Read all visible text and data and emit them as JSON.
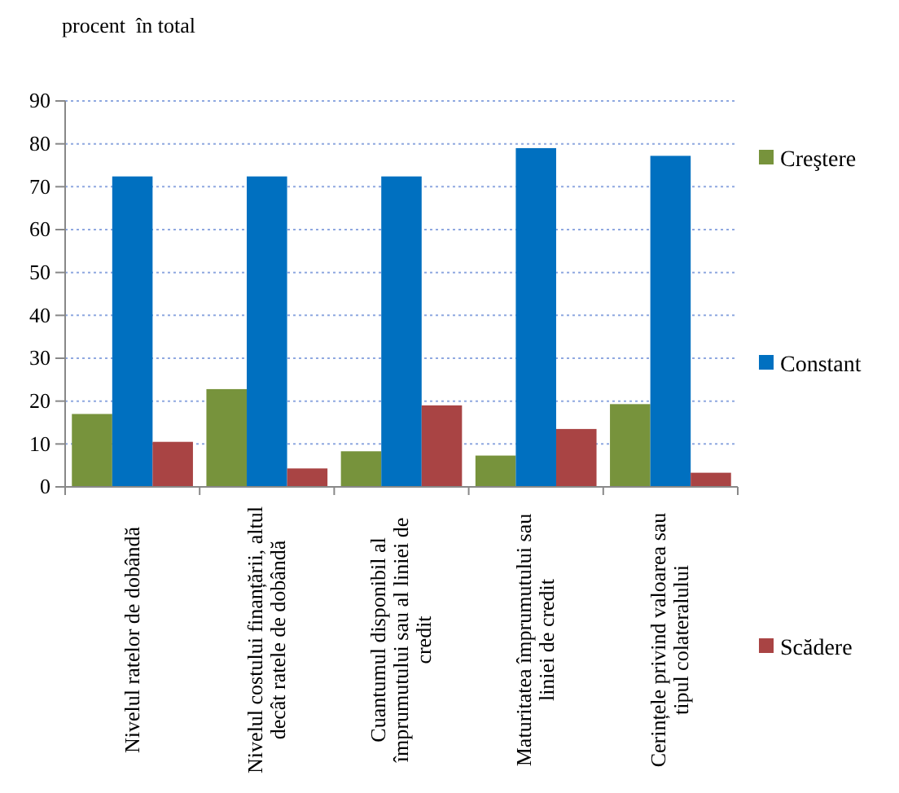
{
  "chart_data": {
    "type": "bar",
    "ylabel": "procent  în total",
    "categories": [
      "Nivelul ratelor de dobândă",
      "Nivelul costului finanțării, altul decât ratele de dobândă",
      "Cuantumul disponibil al împrumutului sau al liniei de credit",
      "Maturitatea împrumutului sau liniei de credit",
      "Cerințele privind valoarea sau tipul colateralului"
    ],
    "series": [
      {
        "name": "Creştere",
        "color": "#77933c",
        "values": [
          17,
          22.8,
          8.3,
          7.3,
          19.3
        ]
      },
      {
        "name": "Constant",
        "color": "#0070c0",
        "values": [
          72.4,
          72.4,
          72.4,
          79,
          77.2
        ]
      },
      {
        "name": "Scădere",
        "color": "#a94444",
        "values": [
          10.5,
          4.3,
          19,
          13.5,
          3.3
        ]
      }
    ],
    "ylim": [
      0,
      90
    ],
    "yticks": [
      0,
      10,
      20,
      30,
      40,
      50,
      60,
      70,
      80,
      90
    ],
    "grid": "y",
    "legend": "right"
  }
}
